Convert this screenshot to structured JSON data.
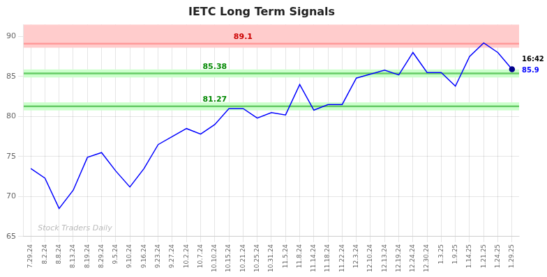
{
  "chart_data": {
    "type": "line",
    "title": "IETC Long Term Signals",
    "categories": [
      "7.29.24",
      "8.2.24",
      "8.8.24",
      "8.13.24",
      "8.19.24",
      "8.29.24",
      "9.5.24",
      "9.10.24",
      "9.16.24",
      "9.23.24",
      "9.27.24",
      "10.2.24",
      "10.7.24",
      "10.10.24",
      "10.15.24",
      "10.21.24",
      "10.25.24",
      "10.31.24",
      "11.5.24",
      "11.8.24",
      "11.14.24",
      "11.18.24",
      "11.22.24",
      "12.3.24",
      "12.10.24",
      "12.13.24",
      "12.19.24",
      "12.24.24",
      "12.30.24",
      "1.3.25",
      "1.9.25",
      "1.14.25",
      "1.21.25",
      "1.24.25",
      "1.29.25"
    ],
    "values": [
      73.5,
      72.3,
      68.5,
      70.8,
      74.9,
      75.5,
      73.2,
      71.2,
      73.5,
      76.5,
      77.5,
      78.5,
      77.8,
      79.0,
      81.0,
      81.0,
      79.8,
      80.5,
      80.2,
      84.0,
      80.8,
      81.5,
      81.5,
      84.8,
      85.3,
      85.8,
      85.2,
      88.0,
      85.5,
      85.5,
      83.8,
      87.5,
      89.2,
      88.0,
      85.9
    ],
    "color": "blue",
    "ylim": [
      65,
      91.5
    ],
    "yticks": [
      65,
      70,
      75,
      80,
      85,
      90
    ],
    "grid": true,
    "hlines": [
      {
        "value": 89.1,
        "label": "89.1",
        "color": "#ff9999",
        "label_color": "#cc0000"
      },
      {
        "value": 85.38,
        "label": "85.38",
        "color": "#66cc66",
        "label_color": "#008800"
      },
      {
        "value": 81.27,
        "label": "81.27",
        "color": "#66cc66",
        "label_color": "#008800"
      }
    ],
    "bands": [
      {
        "ymin": 88.6,
        "ymax": 91.5,
        "color": "#ffcccc"
      },
      {
        "ymin": 84.88,
        "ymax": 85.88,
        "color": "#ccffcc"
      },
      {
        "ymin": 80.77,
        "ymax": 81.77,
        "color": "#ccffcc"
      }
    ],
    "last_point": {
      "color": "#00008b",
      "time_label": "16:42",
      "value_label": "85.9"
    },
    "watermark": "Stock Traders Daily",
    "watermark_color": "#bbbbbb"
  }
}
